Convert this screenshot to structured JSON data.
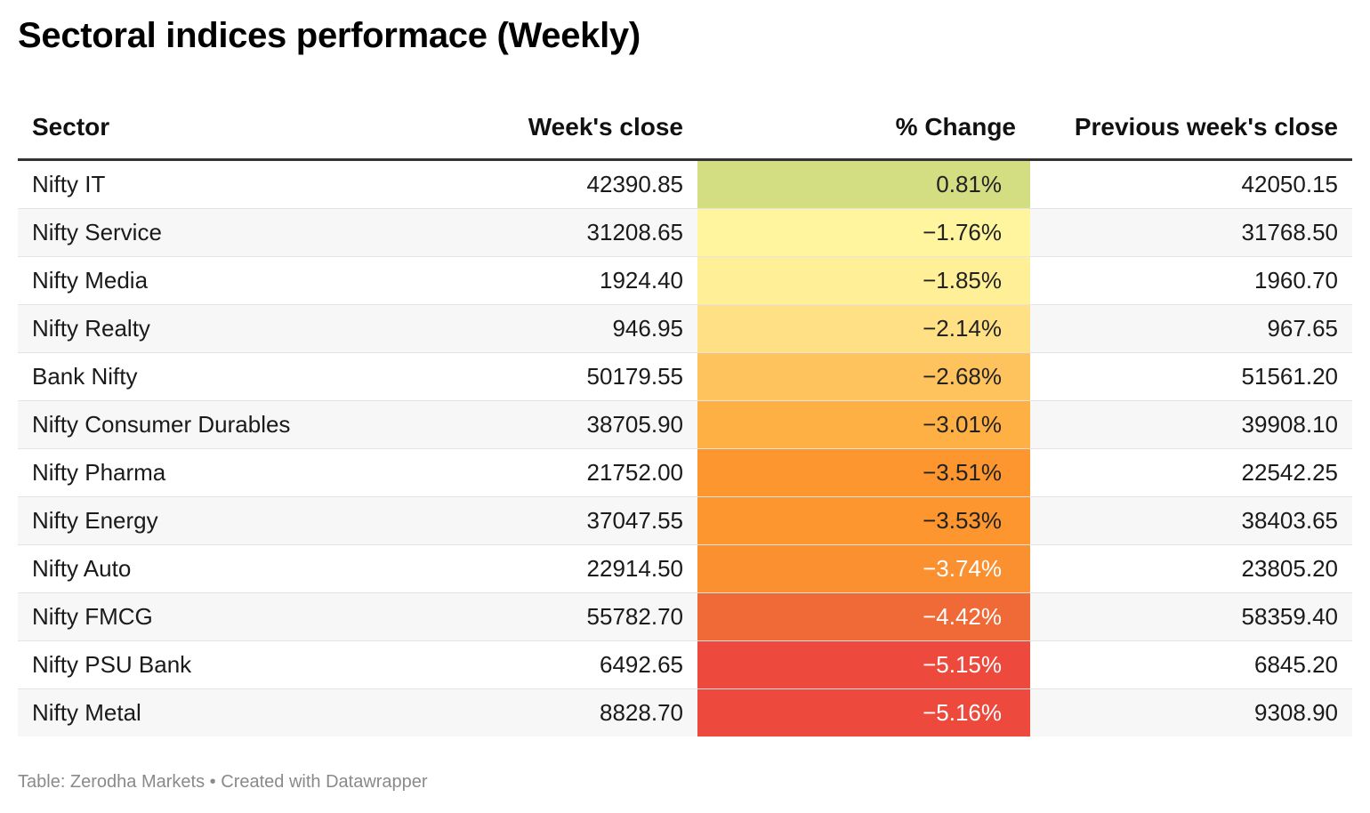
{
  "title": "Sectoral indices performace (Weekly)",
  "footer": {
    "source_label": "Table: Zerodha Markets",
    "separator": "•",
    "credit": "Created with Datawrapper"
  },
  "chart_data": {
    "type": "table",
    "columns": [
      "Sector",
      "Week's close",
      "% Change",
      "Previous week's close"
    ],
    "rows": [
      {
        "sector": "Nifty IT",
        "close": "42390.85",
        "change": "0.81%",
        "change_value": 0.81,
        "prev": "42050.15",
        "color": "#d3dd82",
        "text_color": "#222222"
      },
      {
        "sector": "Nifty Service",
        "close": "31208.65",
        "change": "−1.76%",
        "change_value": -1.76,
        "prev": "31768.50",
        "color": "#fff59f",
        "text_color": "#222222"
      },
      {
        "sector": "Nifty Media",
        "close": "1924.40",
        "change": "−1.85%",
        "change_value": -1.85,
        "prev": "1960.70",
        "color": "#ffef96",
        "text_color": "#222222"
      },
      {
        "sector": "Nifty Realty",
        "close": "946.95",
        "change": "−2.14%",
        "change_value": -2.14,
        "prev": "967.65",
        "color": "#ffe085",
        "text_color": "#222222"
      },
      {
        "sector": "Bank Nifty",
        "close": "50179.55",
        "change": "−2.68%",
        "change_value": -2.68,
        "prev": "51561.20",
        "color": "#fec35d",
        "text_color": "#222222"
      },
      {
        "sector": "Nifty Consumer Durables",
        "close": "38705.90",
        "change": "−3.01%",
        "change_value": -3.01,
        "prev": "39908.10",
        "color": "#feb045",
        "text_color": "#222222"
      },
      {
        "sector": "Nifty Pharma",
        "close": "21752.00",
        "change": "−3.51%",
        "change_value": -3.51,
        "prev": "22542.25",
        "color": "#fd962e",
        "text_color": "#222222"
      },
      {
        "sector": "Nifty Energy",
        "close": "37047.55",
        "change": "−3.53%",
        "change_value": -3.53,
        "prev": "38403.65",
        "color": "#fd962e",
        "text_color": "#222222"
      },
      {
        "sector": "Nifty Auto",
        "close": "22914.50",
        "change": "−3.74%",
        "change_value": -3.74,
        "prev": "23805.20",
        "color": "#fa902f",
        "text_color": "#ffffff"
      },
      {
        "sector": "Nifty FMCG",
        "close": "55782.70",
        "change": "−4.42%",
        "change_value": -4.42,
        "prev": "58359.40",
        "color": "#f06a38",
        "text_color": "#ffffff"
      },
      {
        "sector": "Nifty PSU Bank",
        "close": "6492.65",
        "change": "−5.15%",
        "change_value": -5.15,
        "prev": "6845.20",
        "color": "#ee493d",
        "text_color": "#ffffff"
      },
      {
        "sector": "Nifty Metal",
        "close": "8828.70",
        "change": "−5.16%",
        "change_value": -5.16,
        "prev": "9308.90",
        "color": "#ee493d",
        "text_color": "#ffffff"
      }
    ]
  }
}
